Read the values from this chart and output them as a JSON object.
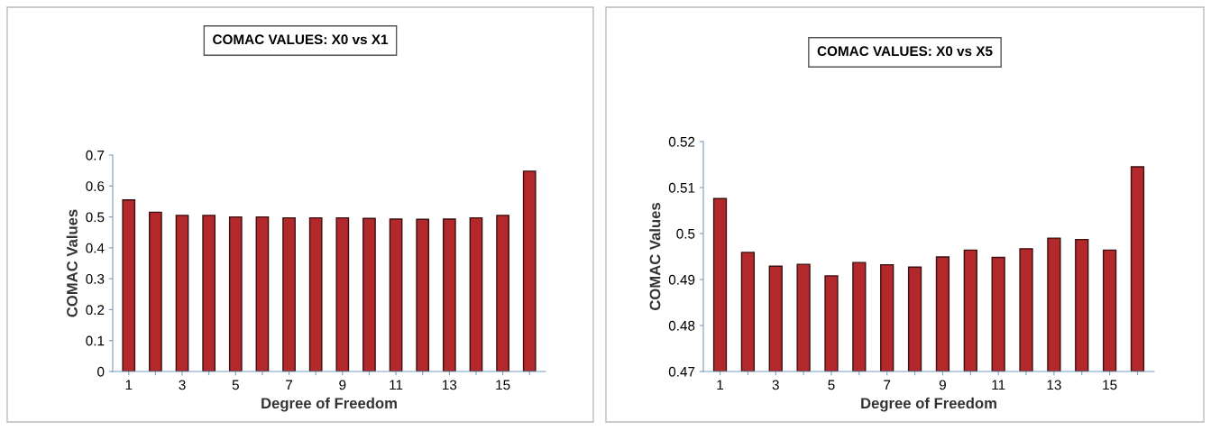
{
  "chart_data": [
    {
      "type": "bar",
      "title": "COMAC VALUES: X0 vs X1",
      "xlabel": "Degree of Freedom",
      "ylabel": "COMAC Values",
      "categories": [
        "1",
        null,
        "3",
        null,
        "5",
        null,
        "7",
        null,
        "9",
        null,
        "11",
        null,
        "13",
        null,
        "15",
        null
      ],
      "values": [
        0.555,
        0.515,
        0.505,
        0.505,
        0.5,
        0.5,
        0.497,
        0.497,
        0.497,
        0.495,
        0.493,
        0.492,
        0.493,
        0.497,
        0.505,
        0.648
      ],
      "color": "#b3282b",
      "ylim": [
        0,
        0.7
      ],
      "yticks": [
        0,
        0.1,
        0.2,
        0.3,
        0.4,
        0.5,
        0.6,
        0.7
      ],
      "grid": false,
      "legend": false
    },
    {
      "type": "bar",
      "title": "COMAC VALUES: X0 vs X5",
      "xlabel": "Degree of Freedom",
      "ylabel": "COMAC Values",
      "categories": [
        "1",
        null,
        "3",
        null,
        "5",
        null,
        "7",
        null,
        "9",
        null,
        "11",
        null,
        "13",
        null,
        "15",
        null
      ],
      "values": [
        0.5076,
        0.4959,
        0.4929,
        0.4933,
        0.4908,
        0.4937,
        0.4932,
        0.4927,
        0.4949,
        0.4964,
        0.4948,
        0.4967,
        0.499,
        0.4987,
        0.4964,
        0.5145
      ],
      "color": "#b3282b",
      "ylim": [
        0.47,
        0.52
      ],
      "yticks": [
        0.47,
        0.48,
        0.49,
        0.5,
        0.51,
        0.52
      ],
      "grid": false,
      "legend": false
    }
  ]
}
